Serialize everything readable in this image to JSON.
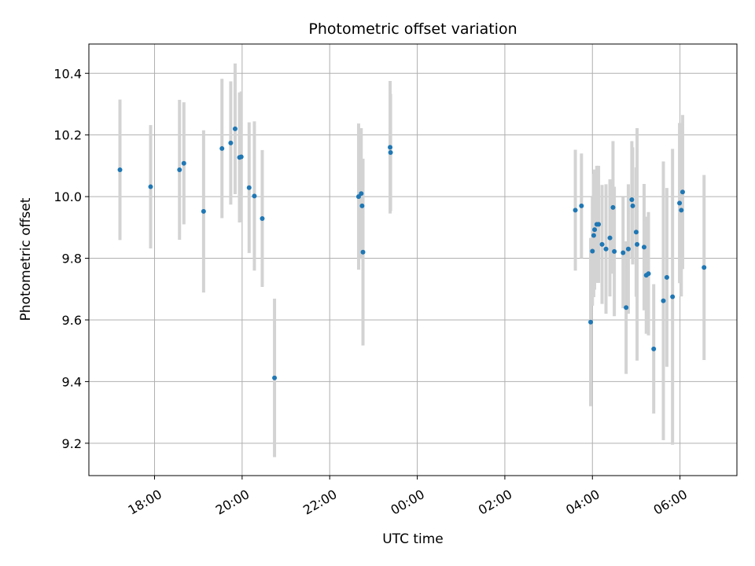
{
  "chart_data": {
    "type": "scatter",
    "title": "Photometric offset variation",
    "xlabel": "UTC time",
    "ylabel": "Photometric offset",
    "x_unit": "hours relative to 00:00 UTC",
    "xlim": [
      -7.5,
      7.3
    ],
    "ylim": [
      9.095,
      10.495
    ],
    "x_ticks": [
      {
        "value": -6,
        "label": "18:00"
      },
      {
        "value": -4,
        "label": "20:00"
      },
      {
        "value": -2,
        "label": "22:00"
      },
      {
        "value": 0,
        "label": "00:00"
      },
      {
        "value": 2,
        "label": "02:00"
      },
      {
        "value": 4,
        "label": "04:00"
      },
      {
        "value": 6,
        "label": "06:00"
      }
    ],
    "y_ticks": [
      {
        "value": 9.2,
        "label": "9.2"
      },
      {
        "value": 9.4,
        "label": "9.4"
      },
      {
        "value": 9.6,
        "label": "9.6"
      },
      {
        "value": 9.8,
        "label": "9.8"
      },
      {
        "value": 10.0,
        "label": "10.0"
      },
      {
        "value": 10.2,
        "label": "10.2"
      },
      {
        "value": 10.4,
        "label": "10.4"
      }
    ],
    "grid": true,
    "marker_color": "#1f77b4",
    "errorbar_color": "#d3d3d3",
    "points": [
      {
        "x": -6.79,
        "y": 10.087,
        "err": 0.228
      },
      {
        "x": -6.09,
        "y": 10.032,
        "err": 0.2
      },
      {
        "x": -5.43,
        "y": 10.087,
        "err": 0.227
      },
      {
        "x": -5.33,
        "y": 10.108,
        "err": 0.198
      },
      {
        "x": -4.88,
        "y": 9.952,
        "err": 0.263
      },
      {
        "x": -4.46,
        "y": 10.156,
        "err": 0.226
      },
      {
        "x": -4.26,
        "y": 10.174,
        "err": 0.2
      },
      {
        "x": -4.16,
        "y": 10.22,
        "err": 0.212
      },
      {
        "x": -4.06,
        "y": 10.127,
        "err": 0.211
      },
      {
        "x": -4.02,
        "y": 10.129,
        "err": 0.212
      },
      {
        "x": -3.84,
        "y": 10.029,
        "err": 0.212
      },
      {
        "x": -3.72,
        "y": 10.002,
        "err": 0.242
      },
      {
        "x": -3.54,
        "y": 9.929,
        "err": 0.222
      },
      {
        "x": -3.26,
        "y": 9.412,
        "err": 0.257
      },
      {
        "x": -1.34,
        "y": 10.0,
        "err": 0.237
      },
      {
        "x": -1.28,
        "y": 10.01,
        "err": 0.212
      },
      {
        "x": -1.26,
        "y": 9.97,
        "err": 0.15
      },
      {
        "x": -1.24,
        "y": 9.82,
        "err": 0.303
      },
      {
        "x": -0.62,
        "y": 10.16,
        "err": 0.215
      },
      {
        "x": -0.61,
        "y": 10.143,
        "err": 0.19
      },
      {
        "x": 3.61,
        "y": 9.956,
        "err": 0.196
      },
      {
        "x": 3.75,
        "y": 9.97,
        "err": 0.17
      },
      {
        "x": 3.96,
        "y": 9.593,
        "err": 0.273
      },
      {
        "x": 4.0,
        "y": 9.823,
        "err": 0.177
      },
      {
        "x": 4.03,
        "y": 9.874,
        "err": 0.2
      },
      {
        "x": 4.05,
        "y": 9.893,
        "err": 0.195
      },
      {
        "x": 4.1,
        "y": 9.91,
        "err": 0.19
      },
      {
        "x": 4.14,
        "y": 9.91,
        "err": 0.19
      },
      {
        "x": 4.22,
        "y": 9.845,
        "err": 0.193
      },
      {
        "x": 4.31,
        "y": 9.83,
        "err": 0.21
      },
      {
        "x": 4.4,
        "y": 9.866,
        "err": 0.19
      },
      {
        "x": 4.47,
        "y": 9.965,
        "err": 0.215
      },
      {
        "x": 4.5,
        "y": 9.822,
        "err": 0.21
      },
      {
        "x": 4.7,
        "y": 9.818,
        "err": 0.18
      },
      {
        "x": 4.77,
        "y": 9.64,
        "err": 0.215
      },
      {
        "x": 4.82,
        "y": 9.83,
        "err": 0.21
      },
      {
        "x": 4.9,
        "y": 9.99,
        "err": 0.19
      },
      {
        "x": 4.92,
        "y": 9.97,
        "err": 0.19
      },
      {
        "x": 5.0,
        "y": 9.885,
        "err": 0.21
      },
      {
        "x": 5.02,
        "y": 9.845,
        "err": 0.377
      },
      {
        "x": 5.18,
        "y": 9.836,
        "err": 0.205
      },
      {
        "x": 5.23,
        "y": 9.745,
        "err": 0.19
      },
      {
        "x": 5.28,
        "y": 9.75,
        "err": 0.2
      },
      {
        "x": 5.4,
        "y": 9.506,
        "err": 0.21
      },
      {
        "x": 5.62,
        "y": 9.662,
        "err": 0.452
      },
      {
        "x": 5.7,
        "y": 9.738,
        "err": 0.29
      },
      {
        "x": 5.83,
        "y": 9.675,
        "err": 0.48
      },
      {
        "x": 5.99,
        "y": 9.979,
        "err": 0.26
      },
      {
        "x": 6.03,
        "y": 9.956,
        "err": 0.28
      },
      {
        "x": 6.06,
        "y": 10.015,
        "err": 0.25
      },
      {
        "x": 6.55,
        "y": 9.77,
        "err": 0.3
      }
    ]
  }
}
